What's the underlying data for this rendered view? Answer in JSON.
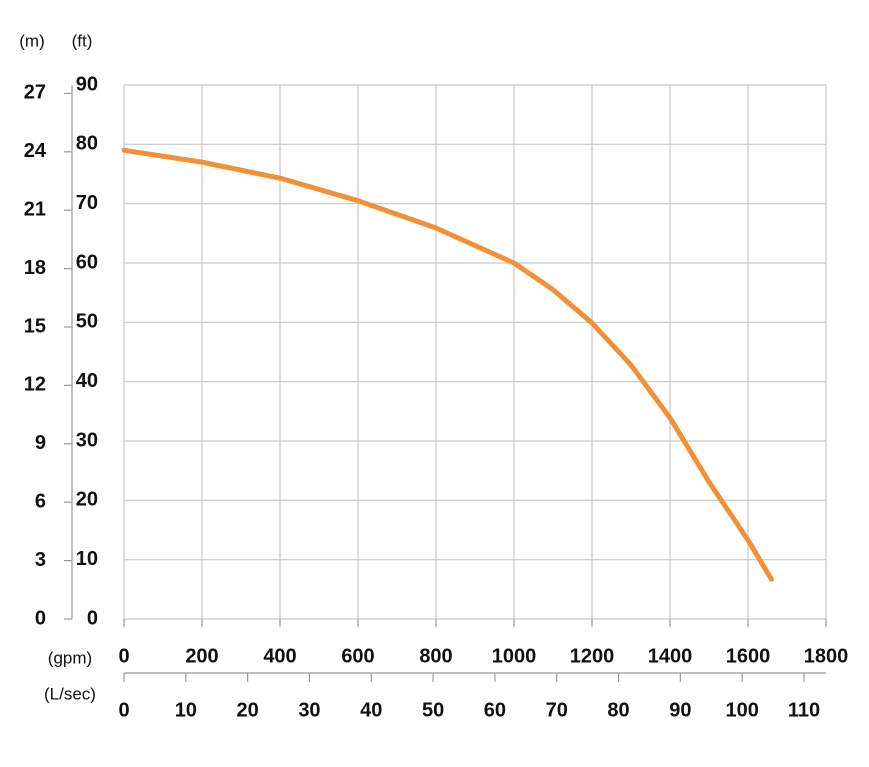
{
  "chart_data": {
    "type": "line",
    "xlabel": "(gpm)",
    "ylabel": "(ft)",
    "y2label": "(m)",
    "x2label": "(L/sec)",
    "x": [
      0,
      200,
      400,
      600,
      800,
      1000,
      1100,
      1200,
      1300,
      1400,
      1500,
      1600,
      1660
    ],
    "series": [
      {
        "color": "#f0913a",
        "values": [
          79.0,
          77.0,
          74.3,
          70.5,
          65.9,
          60.0,
          55.5,
          49.9,
          42.8,
          33.9,
          23.1,
          13.3,
          6.7
        ]
      }
    ],
    "xlim": [
      0,
      1800
    ],
    "xticks": [
      0,
      200,
      400,
      600,
      800,
      1000,
      1200,
      1400,
      1600,
      1800
    ],
    "ylim": [
      0,
      90
    ],
    "yticks": [
      0,
      10,
      20,
      30,
      40,
      50,
      60,
      70,
      80,
      90
    ],
    "y2lim": [
      0,
      27.432
    ],
    "y2ticks": [
      0,
      3,
      6,
      9,
      12,
      15,
      18,
      21,
      24,
      27
    ],
    "x2lim": [
      0,
      113.56
    ],
    "x2ticks": [
      0,
      10,
      20,
      30,
      40,
      50,
      60,
      70,
      80,
      90,
      100,
      110
    ],
    "grid": true
  }
}
